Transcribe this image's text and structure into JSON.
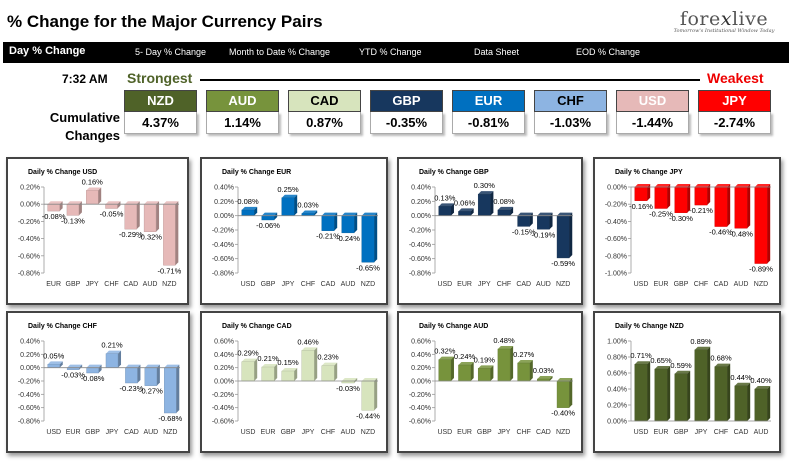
{
  "header": {
    "title": "% Change for the Major Currency Pairs",
    "logo": {
      "brand": "forexlive",
      "brand_pre": "fore",
      "brand_x": "x",
      "brand_post": "live",
      "tagline": "Tomorrow's Institutional Window Today"
    }
  },
  "nav": {
    "items": [
      {
        "label": "Day % Change"
      },
      {
        "label": "5- Day % Change"
      },
      {
        "label": "Month to Date % Change"
      },
      {
        "label": "YTD % Change"
      },
      {
        "label": "Data Sheet"
      },
      {
        "label": "EOD % Change"
      }
    ]
  },
  "strength": {
    "time": "7:32 AM",
    "strongest_label": "Strongest",
    "weakest_label": "Weakest",
    "cumulative_label_1": "Cumulative",
    "cumulative_label_2": "Changes",
    "currencies": [
      {
        "code": "NZD",
        "value": "4.37%",
        "color": "#4f6228",
        "text": "#ffffff"
      },
      {
        "code": "AUD",
        "value": "1.14%",
        "color": "#77933c",
        "text": "#ffffff"
      },
      {
        "code": "CAD",
        "value": "0.87%",
        "color": "#d7e4bd",
        "text": "#000000"
      },
      {
        "code": "GBP",
        "value": "-0.35%",
        "color": "#17375e",
        "text": "#ffffff"
      },
      {
        "code": "EUR",
        "value": "-0.81%",
        "color": "#0070c0",
        "text": "#ffffff"
      },
      {
        "code": "CHF",
        "value": "-1.03%",
        "color": "#8db4e2",
        "text": "#000000"
      },
      {
        "code": "USD",
        "value": "-1.44%",
        "color": "#e6b9b8",
        "text": "#ffffff"
      },
      {
        "code": "JPY",
        "value": "-2.74%",
        "color": "#ff0000",
        "text": "#ffffff"
      }
    ]
  },
  "chart_data": [
    {
      "type": "bar",
      "title": "Daily % Change USD",
      "color": "#e6b9b8",
      "categories": [
        "EUR",
        "GBP",
        "JPY",
        "CHF",
        "CAD",
        "AUD",
        "NZD"
      ],
      "values": [
        -0.08,
        -0.13,
        0.16,
        -0.05,
        -0.29,
        -0.32,
        -0.71
      ],
      "labels": [
        "-0.08%",
        "-0.13%",
        "0.16%",
        "-0.05%",
        "-0.29%",
        "-0.32%",
        "-0.71%"
      ],
      "yticks": [
        0.2,
        0.0,
        -0.2,
        -0.4,
        -0.6,
        -0.8
      ],
      "ytick_labels": [
        "0.20%",
        "0.00%",
        "-0.20%",
        "-0.40%",
        "-0.60%",
        "-0.80%"
      ],
      "ylim": [
        -0.8,
        0.2
      ]
    },
    {
      "type": "bar",
      "title": "Daily % Change EUR",
      "color": "#0070c0",
      "categories": [
        "USD",
        "GBP",
        "JPY",
        "CHF",
        "CAD",
        "AUD",
        "NZD"
      ],
      "values": [
        0.08,
        -0.06,
        0.25,
        0.03,
        -0.21,
        -0.24,
        -0.65
      ],
      "labels": [
        "0.08%",
        "-0.06%",
        "0.25%",
        "0.03%",
        "-0.21%",
        "-0.24%",
        "-0.65%"
      ],
      "yticks": [
        0.4,
        0.2,
        0.0,
        -0.2,
        -0.4,
        -0.6,
        -0.8
      ],
      "ytick_labels": [
        "0.40%",
        "0.20%",
        "0.00%",
        "-0.20%",
        "-0.40%",
        "-0.60%",
        "-0.80%"
      ],
      "ylim": [
        -0.8,
        0.4
      ]
    },
    {
      "type": "bar",
      "title": "Daily % Change GBP",
      "color": "#17375e",
      "categories": [
        "USD",
        "EUR",
        "JPY",
        "CHF",
        "CAD",
        "AUD",
        "NZD"
      ],
      "values": [
        0.13,
        0.06,
        0.3,
        0.08,
        -0.15,
        -0.19,
        -0.59
      ],
      "labels": [
        "0.13%",
        "0.06%",
        "0.30%",
        "0.08%",
        "-0.15%",
        "-0.19%",
        "-0.59%"
      ],
      "yticks": [
        0.4,
        0.2,
        0.0,
        -0.2,
        -0.4,
        -0.6,
        -0.8
      ],
      "ytick_labels": [
        "0.40%",
        "0.20%",
        "0.00%",
        "-0.20%",
        "-0.40%",
        "-0.60%",
        "-0.80%"
      ],
      "ylim": [
        -0.8,
        0.4
      ]
    },
    {
      "type": "bar",
      "title": "Daily % Change JPY",
      "color": "#ff0000",
      "categories": [
        "USD",
        "EUR",
        "GBP",
        "CHF",
        "CAD",
        "AUD",
        "NZD"
      ],
      "values": [
        -0.16,
        -0.25,
        -0.3,
        -0.21,
        -0.46,
        -0.48,
        -0.89
      ],
      "labels": [
        "-0.16%",
        "-0.25%",
        "-0.30%",
        "-0.21%",
        "-0.46%",
        "-0.48%",
        "-0.89%"
      ],
      "yticks": [
        0.0,
        -0.2,
        -0.4,
        -0.6,
        -0.8,
        -1.0
      ],
      "ytick_labels": [
        "0.00%",
        "-0.20%",
        "-0.40%",
        "-0.60%",
        "-0.80%",
        "-1.00%"
      ],
      "ylim": [
        -1.0,
        0.0
      ]
    },
    {
      "type": "bar",
      "title": "Daily % Change CHF",
      "color": "#8db4e2",
      "categories": [
        "USD",
        "EUR",
        "GBP",
        "JPY",
        "CAD",
        "AUD",
        "NZD"
      ],
      "values": [
        0.05,
        -0.03,
        -0.08,
        0.21,
        -0.23,
        -0.27,
        -0.68
      ],
      "labels": [
        "0.05%",
        "-0.03%",
        "-0.08%",
        "0.21%",
        "-0.23%",
        "-0.27%",
        "-0.68%"
      ],
      "yticks": [
        0.4,
        0.2,
        0.0,
        -0.2,
        -0.4,
        -0.6,
        -0.8
      ],
      "ytick_labels": [
        "0.40%",
        "0.20%",
        "0.00%",
        "-0.20%",
        "-0.40%",
        "-0.60%",
        "-0.80%"
      ],
      "ylim": [
        -0.8,
        0.4
      ]
    },
    {
      "type": "bar",
      "title": "Daily % Change CAD",
      "color": "#d7e4bd",
      "categories": [
        "USD",
        "EUR",
        "GBP",
        "JPY",
        "CHF",
        "AUD",
        "NZD"
      ],
      "values": [
        0.29,
        0.21,
        0.15,
        0.46,
        0.23,
        -0.03,
        -0.44
      ],
      "labels": [
        "0.29%",
        "0.21%",
        "0.15%",
        "0.46%",
        "0.23%",
        "-0.03%",
        "-0.44%"
      ],
      "yticks": [
        0.6,
        0.4,
        0.2,
        0.0,
        -0.2,
        -0.4,
        -0.6
      ],
      "ytick_labels": [
        "0.60%",
        "0.40%",
        "0.20%",
        "0.00%",
        "-0.20%",
        "-0.40%",
        "-0.60%"
      ],
      "ylim": [
        -0.6,
        0.6
      ]
    },
    {
      "type": "bar",
      "title": "Daily % Change AUD",
      "color": "#77933c",
      "categories": [
        "USD",
        "EUR",
        "GBP",
        "JPY",
        "CHF",
        "CAD",
        "NZD"
      ],
      "values": [
        0.32,
        0.24,
        0.19,
        0.48,
        0.27,
        0.03,
        -0.4
      ],
      "labels": [
        "0.32%",
        "0.24%",
        "0.19%",
        "0.48%",
        "0.27%",
        "0.03%",
        "-0.40%"
      ],
      "yticks": [
        0.6,
        0.4,
        0.2,
        0.0,
        -0.2,
        -0.4,
        -0.6
      ],
      "ytick_labels": [
        "0.60%",
        "0.40%",
        "0.20%",
        "0.00%",
        "-0.20%",
        "-0.40%",
        "-0.60%"
      ],
      "ylim": [
        -0.6,
        0.6
      ]
    },
    {
      "type": "bar",
      "title": "Daily % Change NZD",
      "color": "#4f6228",
      "categories": [
        "USD",
        "EUR",
        "GBP",
        "JPY",
        "CHF",
        "CAD",
        "AUD"
      ],
      "values": [
        0.71,
        0.65,
        0.59,
        0.89,
        0.68,
        0.44,
        0.4
      ],
      "labels": [
        "0.71%",
        "0.65%",
        "0.59%",
        "0.89%",
        "0.68%",
        "0.44%",
        "0.40%"
      ],
      "yticks": [
        1.0,
        0.8,
        0.6,
        0.4,
        0.2,
        0.0
      ],
      "ytick_labels": [
        "1.00%",
        "0.80%",
        "0.60%",
        "0.40%",
        "0.20%",
        "0.00%"
      ],
      "ylim": [
        0.0,
        1.0
      ]
    }
  ]
}
